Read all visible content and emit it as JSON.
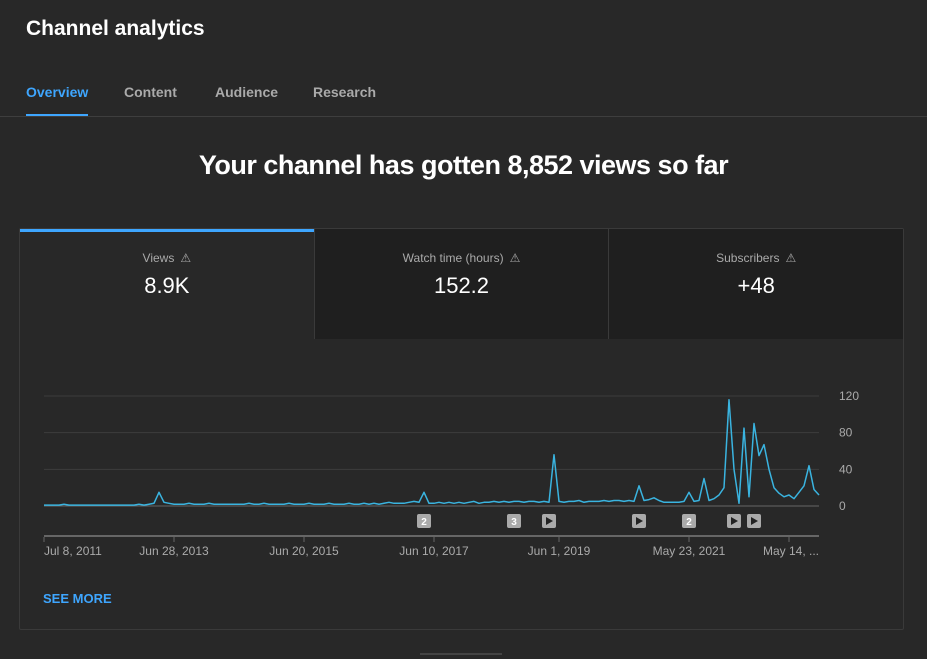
{
  "header": {
    "title": "Channel analytics"
  },
  "tabs": [
    {
      "label": "Overview"
    },
    {
      "label": "Content"
    },
    {
      "label": "Audience"
    },
    {
      "label": "Research"
    }
  ],
  "headline": "Your channel has gotten 8,852 views so far",
  "metrics": [
    {
      "label": "Views",
      "value": "8.9K",
      "icon": "warning-icon"
    },
    {
      "label": "Watch time (hours)",
      "value": "152.2",
      "icon": "warning-icon"
    },
    {
      "label": "Subscribers",
      "value": "+48",
      "icon": "warning-icon"
    }
  ],
  "see_more": "SEE MORE",
  "colors": {
    "accent": "#3ea6ff",
    "line": "#3ab4e0"
  },
  "chart_data": {
    "type": "line",
    "title": "Views",
    "ylim": [
      0,
      120
    ],
    "yticks": [
      "0",
      "40",
      "80",
      "120"
    ],
    "ytick_values": [
      0,
      40,
      80,
      120
    ],
    "xtick_labels": [
      "Jul 8, 2011",
      "Jun 28, 2013",
      "Jun 20, 2015",
      "Jun 10, 2017",
      "Jun 1, 2019",
      "May 23, 2021",
      "May 14, ..."
    ],
    "xtick_index": [
      0,
      26,
      52,
      78,
      103,
      129,
      149
    ],
    "values": [
      1,
      1,
      1,
      1,
      2,
      1,
      1,
      1,
      1,
      1,
      1,
      1,
      1,
      1,
      1,
      1,
      1,
      1,
      1,
      2,
      1,
      2,
      3,
      15,
      4,
      3,
      2,
      2,
      2,
      3,
      2,
      2,
      2,
      3,
      2,
      2,
      2,
      2,
      2,
      2,
      2,
      3,
      2,
      2,
      3,
      2,
      2,
      2,
      2,
      3,
      2,
      2,
      2,
      3,
      2,
      2,
      2,
      3,
      2,
      2,
      2,
      3,
      2,
      2,
      3,
      2,
      3,
      2,
      3,
      4,
      3,
      3,
      3,
      4,
      5,
      4,
      15,
      3,
      3,
      4,
      3,
      4,
      3,
      4,
      3,
      4,
      5,
      3,
      4,
      4,
      5,
      4,
      5,
      4,
      5,
      5,
      4,
      5,
      5,
      4,
      5,
      4,
      56,
      5,
      4,
      5,
      5,
      6,
      4,
      5,
      5,
      5,
      6,
      5,
      6,
      6,
      5,
      6,
      5,
      22,
      6,
      7,
      9,
      6,
      4,
      4,
      4,
      4,
      5,
      15,
      5,
      6,
      30,
      6,
      8,
      12,
      20,
      116,
      40,
      3,
      85,
      10,
      90,
      55,
      67,
      40,
      20,
      14,
      10,
      12,
      8,
      15,
      22,
      44,
      18,
      12
    ],
    "annotations": [
      {
        "index": 76,
        "label": "2"
      },
      {
        "index": 94,
        "label": "3"
      },
      {
        "index": 101,
        "label": "play"
      },
      {
        "index": 119,
        "label": "play"
      },
      {
        "index": 129,
        "label": "2"
      },
      {
        "index": 138,
        "label": "play"
      },
      {
        "index": 142,
        "label": "play"
      }
    ]
  }
}
